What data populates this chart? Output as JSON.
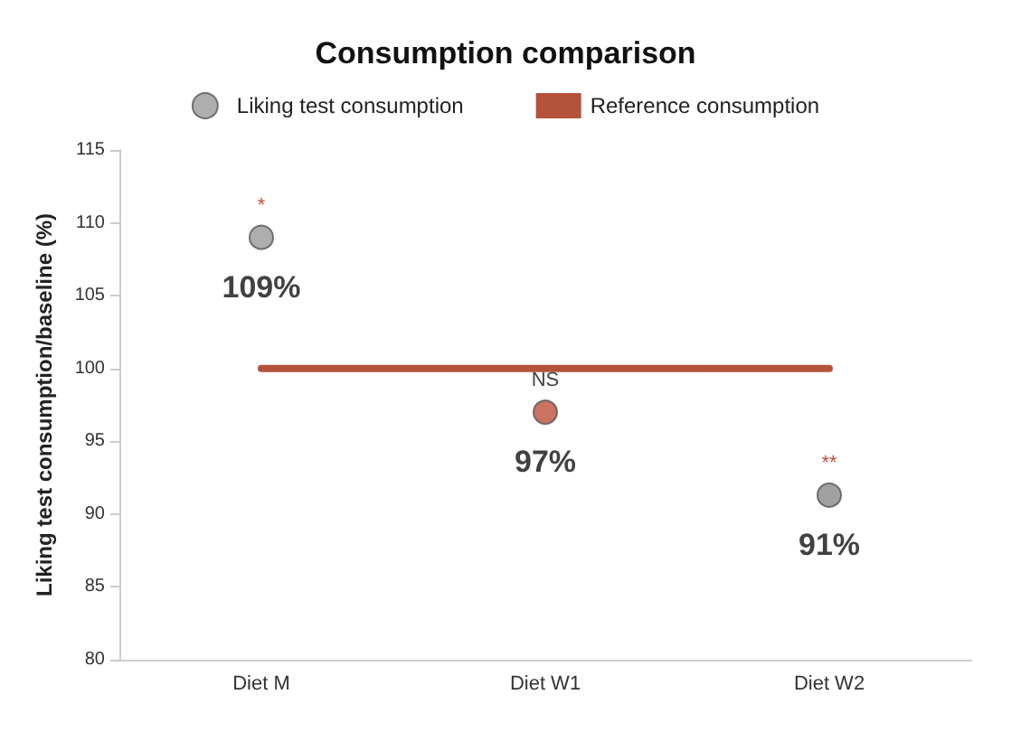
{
  "chart_data": {
    "type": "scatter",
    "title": "Consumption comparison",
    "ylabel": "Liking test consumption/baseline (%)",
    "categories": [
      "Diet M",
      "Diet W1",
      "Diet W2"
    ],
    "series": [
      {
        "name": "Liking test consumption",
        "marker": "circle",
        "colors": [
          "#9a9a9a",
          "#c0503c",
          "#8a8a8a"
        ],
        "color": "#9a9a9a",
        "values": [
          109,
          97,
          91.3
        ],
        "value_labels": [
          "109%",
          "97%",
          "91%"
        ]
      },
      {
        "name": "Reference consumption",
        "type": "line",
        "marker": "none",
        "color": "#b5523b",
        "values": [
          100,
          100,
          100
        ]
      }
    ],
    "annotations": [
      {
        "text": "*",
        "x": "Diet M",
        "y": 109
      },
      {
        "text": "NS",
        "x": "Diet W1",
        "y": 97
      },
      {
        "text": "**",
        "x": "Diet W2",
        "y": 91.3
      }
    ],
    "ylim": [
      80,
      115
    ],
    "yticks": [
      80,
      85,
      90,
      95,
      100,
      105,
      110,
      115
    ],
    "grid": false,
    "legend": "top"
  }
}
